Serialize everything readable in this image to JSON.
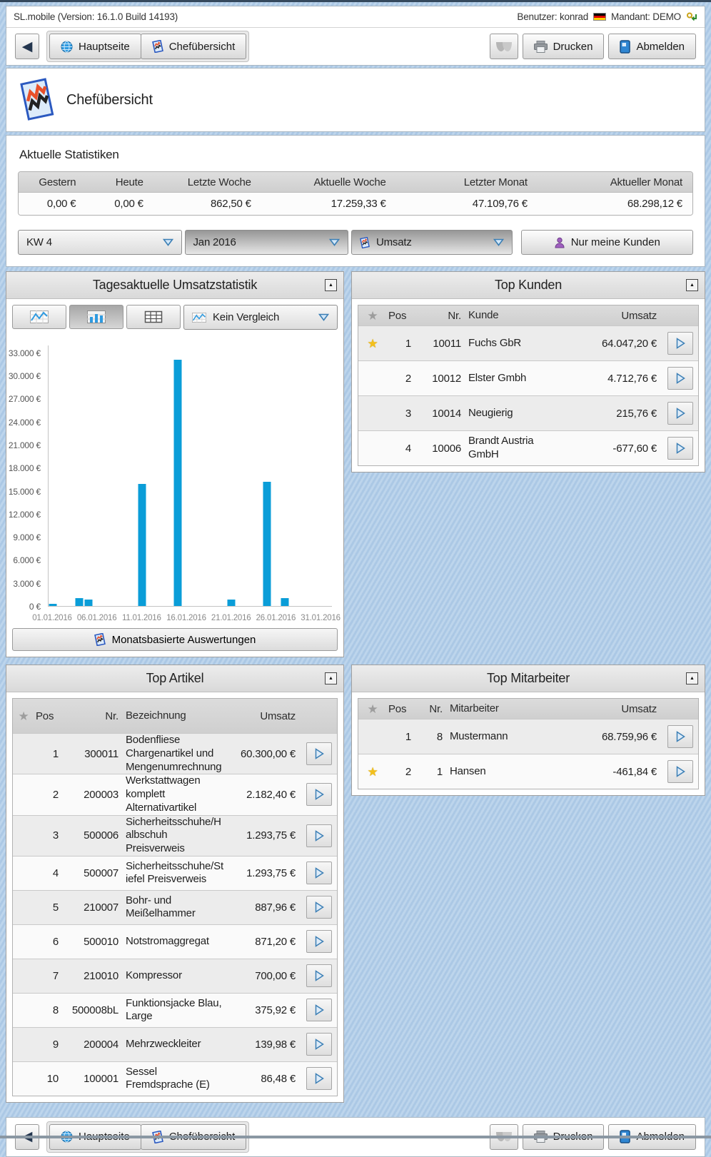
{
  "app": {
    "version_line": "SL.mobile (Version: 16.1.0 Build 14193)",
    "user_label": "Benutzer: konrad",
    "mandant_label": "Mandant: DEMO"
  },
  "nav": {
    "hauptseite": "Hauptseite",
    "chefuebersicht": "Chefübersicht",
    "drucken": "Drucken",
    "abmelden": "Abmelden"
  },
  "icons": {
    "back": "◀",
    "collapse": "▲",
    "star": "★"
  },
  "page": {
    "title": "Chefübersicht"
  },
  "stats": {
    "title": "Aktuelle Statistiken",
    "columns": [
      {
        "label": "Gestern",
        "value": "0,00 €"
      },
      {
        "label": "Heute",
        "value": "0,00 €"
      },
      {
        "label": "Letzte Woche",
        "value": "862,50 €"
      },
      {
        "label": "Aktuelle Woche",
        "value": "17.259,33 €"
      },
      {
        "label": "Letzter Monat",
        "value": "47.109,76 €"
      },
      {
        "label": "Aktueller Monat",
        "value": "68.298,12 €"
      }
    ]
  },
  "filters": {
    "week": "KW 4",
    "month": "Jan 2016",
    "metric": "Umsatz",
    "only_my_customers": "Nur meine Kunden"
  },
  "chart_panel": {
    "title": "Tagesaktuelle Umsatzstatistik",
    "compare_label": "Kein Vergleich",
    "footer_button": "Monatsbasierte Auswertungen"
  },
  "chart_data": {
    "type": "bar",
    "title": "Tagesaktuelle Umsatzstatistik",
    "x": [
      "01.01.2016",
      "04.01.2016",
      "05.01.2016",
      "11.01.2016",
      "15.01.2016",
      "21.01.2016",
      "25.01.2016",
      "27.01.2016"
    ],
    "values": [
      250,
      1000,
      850,
      15900,
      32100,
      860,
      16200,
      1000
    ],
    "xticks": [
      "01.01.2016",
      "06.01.2016",
      "11.01.2016",
      "16.01.2016",
      "21.01.2016",
      "26.01.2016",
      "31.01.2016"
    ],
    "ylim": [
      0,
      34000
    ],
    "ytick_step": 3000,
    "ytick_max": 33000,
    "currency_suffix": " €",
    "bar_color": "#0a9dd8",
    "grid": false,
    "legend": false
  },
  "top_kunden": {
    "title": "Top Kunden",
    "headers": {
      "pos": "Pos",
      "nr": "Nr.",
      "name": "Kunde",
      "umsatz": "Umsatz"
    },
    "rows": [
      {
        "star": true,
        "pos": "1",
        "nr": "10011",
        "name": "Fuchs GbR",
        "umsatz": "64.047,20 €"
      },
      {
        "star": false,
        "pos": "2",
        "nr": "10012",
        "name": "Elster Gmbh",
        "umsatz": "4.712,76 €"
      },
      {
        "star": false,
        "pos": "3",
        "nr": "10014",
        "name": "Neugierig",
        "umsatz": "215,76 €"
      },
      {
        "star": false,
        "pos": "4",
        "nr": "10006",
        "name": "Brandt Austria GmbH",
        "umsatz": "-677,60 €"
      }
    ]
  },
  "top_artikel": {
    "title": "Top Artikel",
    "headers": {
      "pos": "Pos",
      "nr": "Nr.",
      "name": "Bezeichnung",
      "umsatz": "Umsatz"
    },
    "rows": [
      {
        "star": false,
        "pos": "1",
        "nr": "300011",
        "name": "Bodenfliese Chargenartikel und Mengenumrechnung",
        "umsatz": "60.300,00 €"
      },
      {
        "star": false,
        "pos": "2",
        "nr": "200003",
        "name": "Werkstattwagen komplett Alternativartikel",
        "umsatz": "2.182,40 €"
      },
      {
        "star": false,
        "pos": "3",
        "nr": "500006",
        "name": "Sicherheitsschuhe/Halbschuh Preisverweis",
        "umsatz": "1.293,75 €"
      },
      {
        "star": false,
        "pos": "4",
        "nr": "500007",
        "name": "Sicherheitsschuhe/Stiefel Preisverweis",
        "umsatz": "1.293,75 €"
      },
      {
        "star": false,
        "pos": "5",
        "nr": "210007",
        "name": "Bohr- und Meißelhammer",
        "umsatz": "887,96 €"
      },
      {
        "star": false,
        "pos": "6",
        "nr": "500010",
        "name": "Notstromaggregat",
        "umsatz": "871,20 €"
      },
      {
        "star": false,
        "pos": "7",
        "nr": "210010",
        "name": "Kompressor",
        "umsatz": "700,00 €"
      },
      {
        "star": false,
        "pos": "8",
        "nr": "500008bL",
        "name": "Funktionsjacke Blau, Large",
        "umsatz": "375,92 €"
      },
      {
        "star": false,
        "pos": "9",
        "nr": "200004",
        "name": "Mehrzweckleiter",
        "umsatz": "139,98 €"
      },
      {
        "star": false,
        "pos": "10",
        "nr": "100001",
        "name": "Sessel Fremdsprache (E)",
        "umsatz": "86,48 €"
      }
    ]
  },
  "top_mitarbeiter": {
    "title": "Top Mitarbeiter",
    "headers": {
      "pos": "Pos",
      "nr": "Nr.",
      "name": "Mitarbeiter",
      "umsatz": "Umsatz"
    },
    "rows": [
      {
        "star": false,
        "pos": "1",
        "nr": "8",
        "name": "Mustermann",
        "umsatz": "68.759,96 €"
      },
      {
        "star": true,
        "pos": "2",
        "nr": "1",
        "name": "Hansen",
        "umsatz": "-461,84 €"
      }
    ]
  }
}
